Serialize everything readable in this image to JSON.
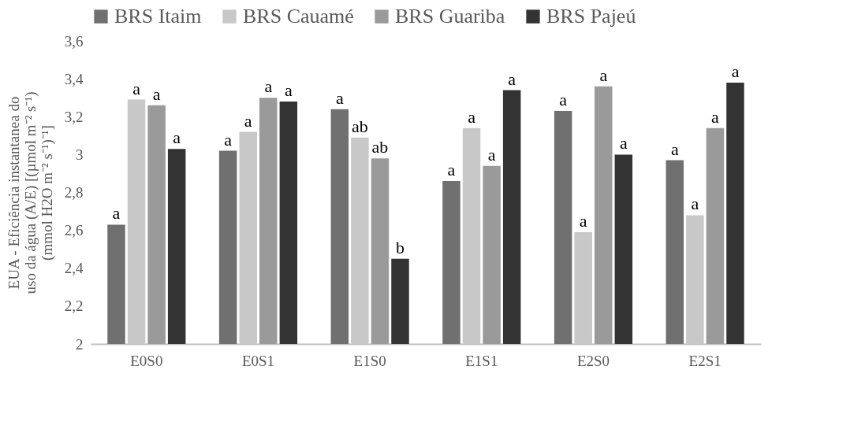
{
  "chart_data": {
    "type": "bar",
    "ylabel": "EUA - Eficiência instantanea do uso da água (A/E) [(µmol m⁻² s⁻¹) (mmol H2O m⁻² s⁻¹)⁻¹]",
    "categories": [
      "E0S0",
      "E0S1",
      "E1S0",
      "E1S1",
      "E2S0",
      "E2S1"
    ],
    "series": [
      {
        "name": "BRS Itaim",
        "color": "#707070",
        "values": [
          2.63,
          3.02,
          3.24,
          2.86,
          3.23,
          2.97
        ],
        "value_labels": [
          "a",
          "a",
          "a",
          "a",
          "a",
          "a"
        ]
      },
      {
        "name": "BRS Cauamé",
        "color": "#c8c8c8",
        "values": [
          3.29,
          3.12,
          3.09,
          3.14,
          2.59,
          2.68
        ],
        "value_labels": [
          "a",
          "a",
          "ab",
          "a",
          "a",
          "a"
        ]
      },
      {
        "name": "BRS Guariba",
        "color": "#9a9a9a",
        "values": [
          3.26,
          3.3,
          2.98,
          2.94,
          3.36,
          3.14
        ],
        "value_labels": [
          "a",
          "a",
          "ab",
          "a",
          "a",
          "a"
        ]
      },
      {
        "name": "BRS Pajeú",
        "color": "#333333",
        "values": [
          3.03,
          3.28,
          2.45,
          3.34,
          3.0,
          3.38
        ],
        "value_labels": [
          "a",
          "a",
          "b",
          "a",
          "a",
          "a"
        ]
      }
    ],
    "ylim": [
      2,
      3.6
    ],
    "yticks": [
      2,
      {
        "value": 2.2,
        "label": "2,2"
      },
      {
        "value": 2.4,
        "label": "2,4"
      },
      {
        "value": 2.6,
        "label": "2,6"
      },
      {
        "value": 2.8,
        "label": "2,8"
      },
      3,
      {
        "value": 3.2,
        "label": "3,2"
      },
      {
        "value": 3.4,
        "label": "3,4"
      },
      {
        "value": 3.6,
        "label": "3,6"
      }
    ],
    "grid": false,
    "legend": "top"
  }
}
